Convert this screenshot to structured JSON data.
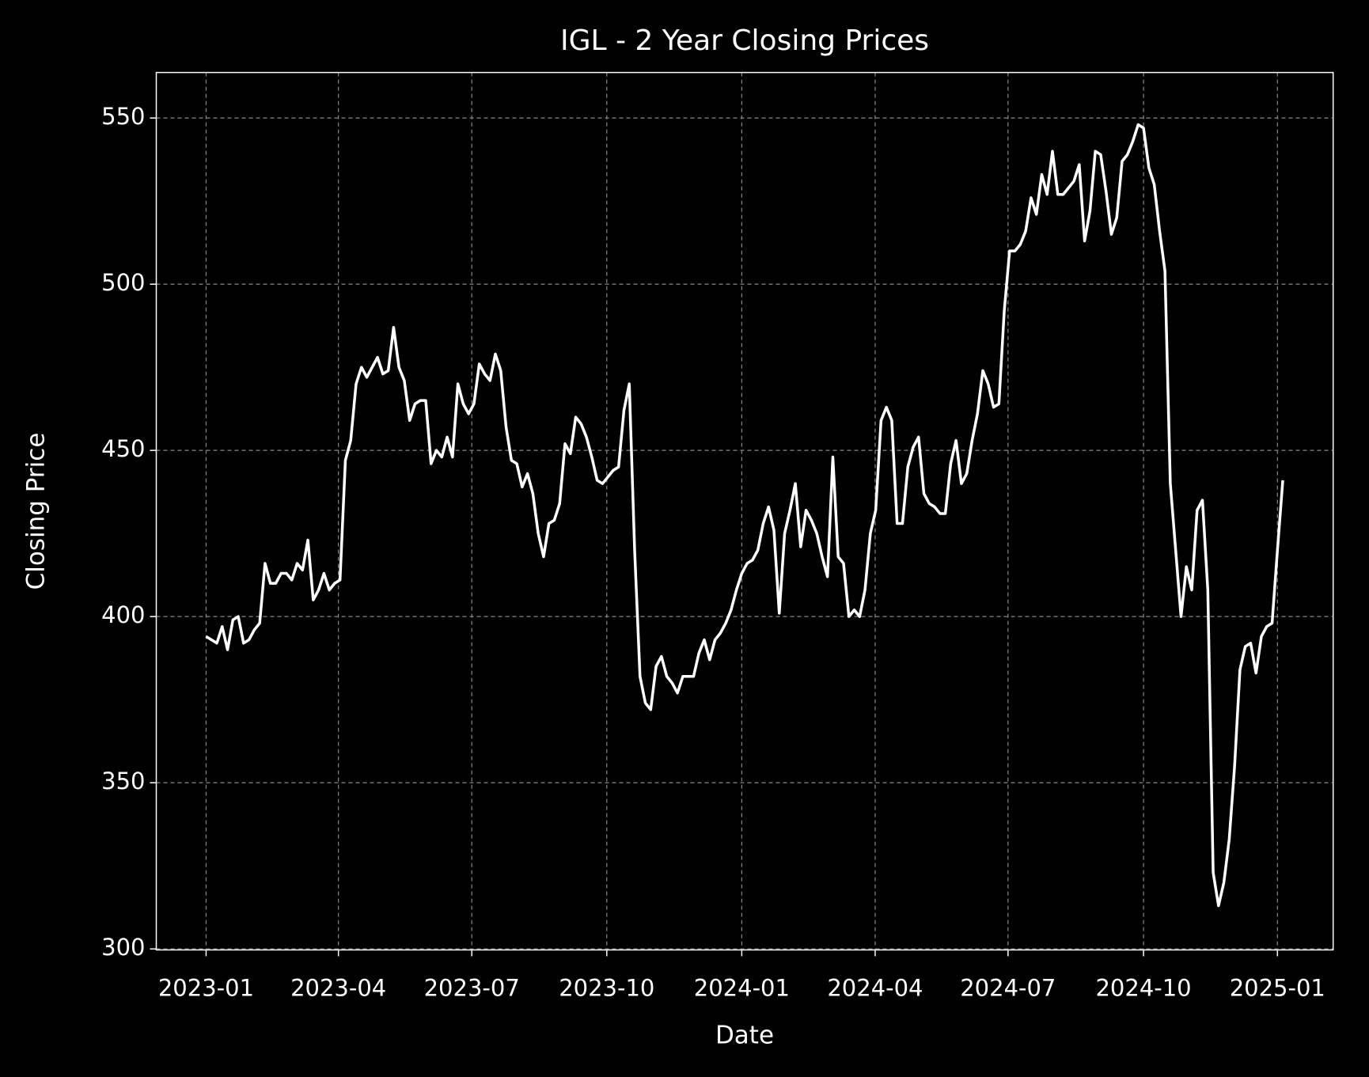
{
  "chart_data": {
    "type": "line",
    "title": "IGL - 2 Year Closing Prices",
    "x_label": "Date",
    "y_label": "Closing Price",
    "color": "#ffffff",
    "grid": true,
    "xlim": [
      2022.907,
      2025.104
    ],
    "ylim": [
      299.7,
      563.7
    ],
    "xticks": [
      {
        "value": 2023.0,
        "label": "2023-01"
      },
      {
        "value": 2023.247,
        "label": "2023-04"
      },
      {
        "value": 2023.496,
        "label": "2023-07"
      },
      {
        "value": 2023.748,
        "label": "2023-10"
      },
      {
        "value": 2024.0,
        "label": "2024-01"
      },
      {
        "value": 2024.249,
        "label": "2024-04"
      },
      {
        "value": 2024.497,
        "label": "2024-07"
      },
      {
        "value": 2024.75,
        "label": "2024-10"
      },
      {
        "value": 2025.0,
        "label": "2025-01"
      }
    ],
    "yticks": [
      300,
      350,
      400,
      450,
      500,
      550
    ],
    "x": [
      2023.0,
      2023.01,
      2023.02,
      2023.03,
      2023.04,
      2023.05,
      2023.06,
      2023.07,
      2023.08,
      2023.09,
      2023.1,
      2023.11,
      2023.12,
      2023.13,
      2023.14,
      2023.15,
      2023.16,
      2023.17,
      2023.18,
      2023.19,
      2023.2,
      2023.21,
      2023.22,
      2023.23,
      2023.24,
      2023.25,
      2023.26,
      2023.27,
      2023.28,
      2023.29,
      2023.3,
      2023.31,
      2023.32,
      2023.33,
      2023.34,
      2023.35,
      2023.36,
      2023.37,
      2023.38,
      2023.39,
      2023.4,
      2023.41,
      2023.42,
      2023.43,
      2023.44,
      2023.45,
      2023.46,
      2023.47,
      2023.48,
      2023.49,
      2023.5,
      2023.51,
      2023.52,
      2023.53,
      2023.54,
      2023.55,
      2023.56,
      2023.57,
      2023.58,
      2023.59,
      2023.6,
      2023.61,
      2023.62,
      2023.63,
      2023.64,
      2023.65,
      2023.66,
      2023.67,
      2023.68,
      2023.69,
      2023.7,
      2023.71,
      2023.72,
      2023.73,
      2023.74,
      2023.75,
      2023.76,
      2023.77,
      2023.78,
      2023.79,
      2023.8,
      2023.81,
      2023.82,
      2023.83,
      2023.84,
      2023.85,
      2023.86,
      2023.87,
      2023.88,
      2023.89,
      2023.9,
      2023.91,
      2023.92,
      2023.93,
      2023.94,
      2023.95,
      2023.96,
      2023.97,
      2023.98,
      2023.99,
      2024.0,
      2024.01,
      2024.02,
      2024.03,
      2024.04,
      2024.05,
      2024.06,
      2024.07,
      2024.08,
      2024.09,
      2024.1,
      2024.11,
      2024.12,
      2024.13,
      2024.14,
      2024.15,
      2024.16,
      2024.17,
      2024.18,
      2024.19,
      2024.2,
      2024.21,
      2024.22,
      2024.23,
      2024.24,
      2024.25,
      2024.26,
      2024.27,
      2024.28,
      2024.29,
      2024.3,
      2024.31,
      2024.32,
      2024.33,
      2024.34,
      2024.35,
      2024.36,
      2024.37,
      2024.38,
      2024.39,
      2024.4,
      2024.41,
      2024.42,
      2024.43,
      2024.44,
      2024.45,
      2024.46,
      2024.47,
      2024.48,
      2024.49,
      2024.5,
      2024.51,
      2024.52,
      2024.53,
      2024.54,
      2024.55,
      2024.56,
      2024.57,
      2024.58,
      2024.59,
      2024.6,
      2024.61,
      2024.62,
      2024.63,
      2024.64,
      2024.65,
      2024.66,
      2024.67,
      2024.68,
      2024.69,
      2024.7,
      2024.71,
      2024.72,
      2024.73,
      2024.74,
      2024.75,
      2024.76,
      2024.77,
      2024.78,
      2024.79,
      2024.8,
      2024.81,
      2024.82,
      2024.83,
      2024.84,
      2024.85,
      2024.86,
      2024.87,
      2024.88,
      2024.89,
      2024.9,
      2024.91,
      2024.92,
      2024.93,
      2024.94,
      2024.95,
      2024.96,
      2024.97,
      2024.98,
      2024.99,
      2025.0,
      2025.01
    ],
    "values": [
      394,
      393,
      392,
      397,
      390,
      399,
      400,
      392,
      393,
      396,
      398,
      416,
      410,
      410,
      413,
      413,
      411,
      416,
      414,
      423,
      405,
      408,
      413,
      408,
      410,
      411,
      447,
      453,
      470,
      475,
      472,
      475,
      478,
      473,
      474,
      487,
      475,
      471,
      459,
      464,
      465,
      465,
      446,
      450,
      448,
      454,
      448,
      470,
      464,
      461,
      464,
      476,
      473,
      471,
      479,
      474,
      457,
      447,
      446,
      439,
      443,
      437,
      425,
      418,
      428,
      429,
      434,
      452,
      449,
      460,
      458,
      454,
      448,
      441,
      440,
      442,
      444,
      445,
      462,
      470,
      420,
      382,
      374,
      372,
      385,
      388,
      382,
      380,
      377,
      382,
      382,
      382,
      389,
      393,
      387,
      393,
      395,
      398,
      402,
      408,
      413,
      416,
      417,
      420,
      428,
      433,
      426,
      401,
      425,
      432,
      440,
      421,
      432,
      429,
      425,
      418,
      412,
      448,
      418,
      416,
      400,
      402,
      400,
      408,
      425,
      432,
      459,
      463,
      459,
      428,
      428,
      445,
      451,
      454,
      437,
      434,
      433,
      431,
      431,
      446,
      453,
      440,
      443,
      453,
      461,
      474,
      470,
      463,
      464,
      492,
      510,
      510,
      512,
      516,
      526,
      521,
      533,
      527,
      540,
      527,
      527,
      529,
      531,
      536,
      513,
      522,
      540,
      539,
      528,
      515,
      520,
      537,
      539,
      543,
      548,
      547,
      535,
      530,
      516,
      504,
      440,
      420,
      400,
      415,
      408,
      432,
      435,
      408,
      323,
      313,
      320,
      333,
      355,
      384,
      391,
      392,
      383,
      394,
      397,
      398,
      420,
      441
    ]
  }
}
